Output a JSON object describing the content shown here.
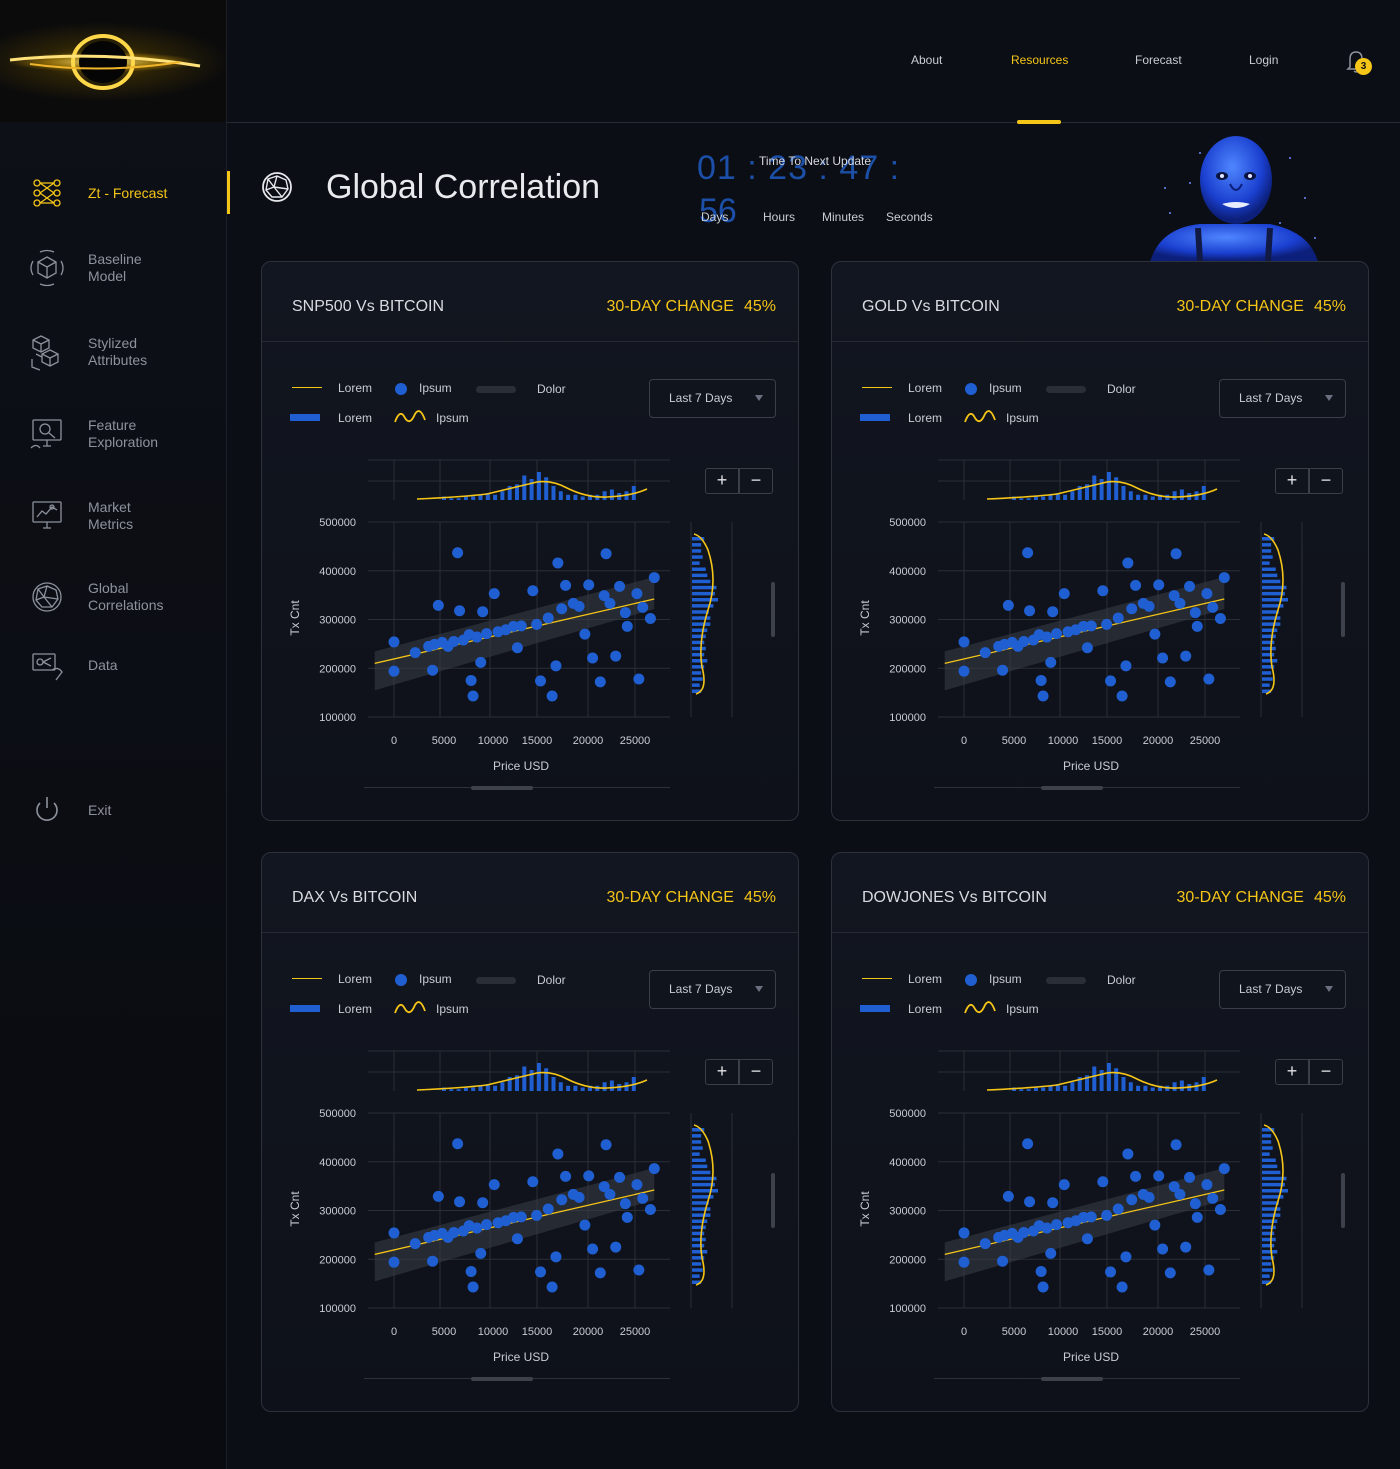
{
  "nav": {
    "links": [
      {
        "label": "About"
      },
      {
        "label": "Resources",
        "active": true
      },
      {
        "label": "Forecast"
      },
      {
        "label": "Login"
      }
    ],
    "notifications": "3"
  },
  "sidebar": {
    "items": [
      {
        "label": "Zt - Forecast",
        "icon": "network-icon",
        "active": true
      },
      {
        "label": "Baseline\nModel",
        "icon": "cube-orbit-icon"
      },
      {
        "label": "Stylized\nAttributes",
        "icon": "cubes-icon"
      },
      {
        "label": "Feature\nExploration",
        "icon": "monitor-search-icon"
      },
      {
        "label": "Market\nMetrics",
        "icon": "monitor-chart-icon"
      },
      {
        "label": "Global\nCorrelations",
        "icon": "globe-network-icon"
      },
      {
        "label": "Data",
        "icon": "data-hand-icon"
      },
      {
        "label": "Exit",
        "icon": "power-icon"
      }
    ]
  },
  "header": {
    "title": "Global Correlation",
    "countdown": {
      "title": "Time To Next Update",
      "digits_line1": "01 : 23 : 47 :",
      "digits_line2": "56",
      "units": [
        "Days",
        "Hours",
        "Minutes",
        "Seconds"
      ]
    }
  },
  "colors": {
    "accent": "#f5c518",
    "blue": "#1f5fd1",
    "bg": "#0b0e15"
  },
  "legend": {
    "row1": [
      "Lorem",
      "Ipsum",
      "Dolor"
    ],
    "row2": [
      "Lorem",
      "Ipsum"
    ]
  },
  "cards": [
    {
      "title": "SNP500 Vs BITCOIN",
      "change_label": "30-DAY CHANGE",
      "change_value": "45%",
      "range": "Last 7 Days"
    },
    {
      "title": "GOLD Vs BITCOIN",
      "change_label": "30-DAY CHANGE",
      "change_value": "45%",
      "range": "Last 7 Days"
    },
    {
      "title": "DAX Vs BITCOIN",
      "change_label": "30-DAY CHANGE",
      "change_value": "45%",
      "range": "Last 7 Days"
    },
    {
      "title": "DOWJONES Vs BITCOIN",
      "change_label": "30-DAY CHANGE",
      "change_value": "45%",
      "range": "Last 7 Days"
    }
  ],
  "zoom": {
    "plus": "+",
    "minus": "−"
  },
  "chart_data": {
    "type": "scatter",
    "xlabel": "Price USD",
    "ylabel": "Tx Cnt",
    "x_ticks": [
      "0",
      "5000",
      "10000",
      "15000",
      "20000",
      "25000"
    ],
    "y_ticks": [
      "500000",
      "400000",
      "300000",
      "200000",
      "100000"
    ],
    "xlim": [
      0,
      28000
    ],
    "ylim": [
      100000,
      500000
    ],
    "points": [
      [
        0,
        254000
      ],
      [
        0,
        194000
      ],
      [
        2200,
        232000
      ],
      [
        3600,
        245000
      ],
      [
        4000,
        196000
      ],
      [
        4200,
        249000
      ],
      [
        4600,
        329000
      ],
      [
        5000,
        253000
      ],
      [
        5600,
        245000
      ],
      [
        6200,
        255000
      ],
      [
        6600,
        437000
      ],
      [
        6800,
        318000
      ],
      [
        7200,
        258000
      ],
      [
        7800,
        269000
      ],
      [
        8000,
        175000
      ],
      [
        8200,
        143000
      ],
      [
        8600,
        264000
      ],
      [
        9000,
        212000
      ],
      [
        9200,
        316000
      ],
      [
        9600,
        271000
      ],
      [
        10400,
        353000
      ],
      [
        10800,
        275000
      ],
      [
        11600,
        279000
      ],
      [
        12400,
        286000
      ],
      [
        12800,
        242000
      ],
      [
        13200,
        287000
      ],
      [
        14400,
        359000
      ],
      [
        14800,
        290000
      ],
      [
        15200,
        174000
      ],
      [
        16000,
        303000
      ],
      [
        16400,
        143000
      ],
      [
        16800,
        205000
      ],
      [
        17000,
        416000
      ],
      [
        17400,
        322000
      ],
      [
        17800,
        370000
      ],
      [
        18600,
        333000
      ],
      [
        19200,
        327000
      ],
      [
        19800,
        270000
      ],
      [
        20200,
        371000
      ],
      [
        20600,
        221000
      ],
      [
        21400,
        172000
      ],
      [
        21800,
        349000
      ],
      [
        22000,
        435000
      ],
      [
        22400,
        333000
      ],
      [
        23000,
        225000
      ],
      [
        23400,
        368000
      ],
      [
        24000,
        314000
      ],
      [
        24200,
        286000
      ],
      [
        25200,
        353000
      ],
      [
        25400,
        178000
      ],
      [
        25800,
        325000
      ],
      [
        26600,
        302000
      ],
      [
        27000,
        386000
      ]
    ],
    "trend": [
      [
        -2000,
        210000
      ],
      [
        27000,
        342000
      ]
    ],
    "top_hist": [
      2,
      1,
      1,
      2,
      2,
      3,
      4,
      3,
      5,
      8,
      9,
      14,
      12,
      16,
      13,
      8,
      5,
      3,
      3,
      2,
      3,
      3,
      5,
      6,
      4,
      5,
      8
    ],
    "right_hist": [
      8,
      6,
      6,
      7,
      5,
      9,
      10,
      12,
      16,
      15,
      17,
      14,
      11,
      12,
      12,
      10,
      9,
      8,
      9,
      8,
      10,
      8,
      6,
      7,
      5,
      6
    ]
  }
}
